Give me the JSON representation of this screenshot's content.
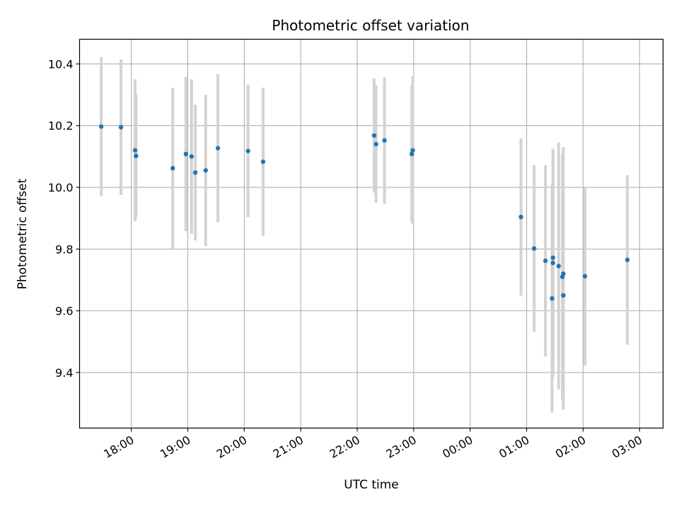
{
  "chart_data": {
    "type": "scatter",
    "title": "Photometric offset variation",
    "xlabel": "UTC time",
    "ylabel": "Photometric offset",
    "grid": true,
    "xlim": [
      "17:05",
      "03:25"
    ],
    "ylim": [
      9.22,
      10.48
    ],
    "x_ticks": [
      "18:00",
      "19:00",
      "20:00",
      "21:00",
      "22:00",
      "23:00",
      "00:00",
      "01:00",
      "02:00",
      "03:00"
    ],
    "y_ticks": [
      "9.4",
      "9.6",
      "9.8",
      "10.0",
      "10.2",
      "10.4"
    ],
    "colors": {
      "point": "#1f77b4",
      "errorbar": "#d3d3d3",
      "grid": "#b0b0b0"
    },
    "points": [
      {
        "x": "17:28",
        "y": 10.197,
        "err": 0.225
      },
      {
        "x": "17:49",
        "y": 10.195,
        "err": 0.22
      },
      {
        "x": "18:04",
        "y": 10.12,
        "err": 0.23
      },
      {
        "x": "18:05",
        "y": 10.102,
        "err": 0.2
      },
      {
        "x": "18:44",
        "y": 10.062,
        "err": 0.26
      },
      {
        "x": "18:58",
        "y": 10.108,
        "err": 0.25
      },
      {
        "x": "19:04",
        "y": 10.1,
        "err": 0.25
      },
      {
        "x": "19:08",
        "y": 10.048,
        "err": 0.22
      },
      {
        "x": "19:19",
        "y": 10.055,
        "err": 0.245
      },
      {
        "x": "19:32",
        "y": 10.127,
        "err": 0.24
      },
      {
        "x": "20:04",
        "y": 10.118,
        "err": 0.215
      },
      {
        "x": "20:20",
        "y": 10.083,
        "err": 0.24
      },
      {
        "x": "22:18",
        "y": 10.168,
        "err": 0.185
      },
      {
        "x": "22:20",
        "y": 10.14,
        "err": 0.19
      },
      {
        "x": "22:29",
        "y": 10.152,
        "err": 0.205
      },
      {
        "x": "22:58",
        "y": 10.108,
        "err": 0.22
      },
      {
        "x": "22:59",
        "y": 10.12,
        "err": 0.24
      },
      {
        "x": "00:54",
        "y": 9.904,
        "err": 0.255
      },
      {
        "x": "01:08",
        "y": 9.802,
        "err": 0.27
      },
      {
        "x": "01:20",
        "y": 9.762,
        "err": 0.31
      },
      {
        "x": "01:27",
        "y": 9.64,
        "err": 0.37
      },
      {
        "x": "01:28",
        "y": 9.772,
        "err": 0.35
      },
      {
        "x": "01:28",
        "y": 9.755,
        "err": 0.37
      },
      {
        "x": "01:34",
        "y": 9.745,
        "err": 0.4
      },
      {
        "x": "01:38",
        "y": 9.71,
        "err": 0.4
      },
      {
        "x": "01:39",
        "y": 9.72,
        "err": 0.41
      },
      {
        "x": "01:39",
        "y": 9.65,
        "err": 0.37
      },
      {
        "x": "02:02",
        "y": 9.712,
        "err": 0.29
      },
      {
        "x": "02:47",
        "y": 9.765,
        "err": 0.275
      }
    ]
  }
}
